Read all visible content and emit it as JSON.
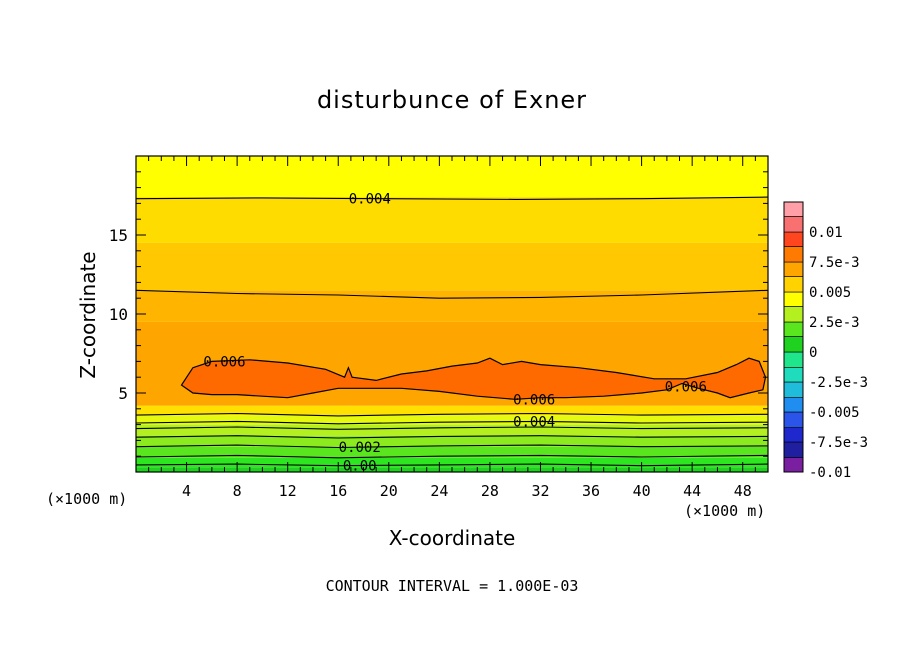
{
  "chart_data": {
    "type": "heatmap",
    "title": "disturbunce of Exner",
    "xlabel": "X-coordinate",
    "ylabel": "Z-coordinate",
    "x_unit_left": "(×1000 m)",
    "x_unit_right": "(×1000 m)",
    "footer": "CONTOUR INTERVAL = 1.000E-03",
    "xlim": [
      0,
      50
    ],
    "ylim": [
      0,
      20
    ],
    "x_ticks": [
      {
        "value": 4,
        "label": "4"
      },
      {
        "value": 8,
        "label": "8"
      },
      {
        "value": 12,
        "label": "12"
      },
      {
        "value": 16,
        "label": "16"
      },
      {
        "value": 20,
        "label": "20"
      },
      {
        "value": 24,
        "label": "24"
      },
      {
        "value": 28,
        "label": "28"
      },
      {
        "value": 32,
        "label": "32"
      },
      {
        "value": 36,
        "label": "36"
      },
      {
        "value": 40,
        "label": "40"
      },
      {
        "value": 44,
        "label": "44"
      },
      {
        "value": 48,
        "label": "48"
      }
    ],
    "y_ticks": [
      {
        "value": 5,
        "label": "5"
      },
      {
        "value": 10,
        "label": "10"
      },
      {
        "value": 15,
        "label": "15"
      }
    ],
    "contour_interval": 0.001,
    "colorbar": {
      "min": -0.01,
      "max": 0.01,
      "levels": [
        {
          "lo": -0.01,
          "hi": -0.0088,
          "color": "#7a1fa0"
        },
        {
          "lo": -0.0088,
          "hi": -0.0075,
          "color": "#1f1fa0"
        },
        {
          "lo": -0.0075,
          "hi": -0.0063,
          "color": "#1f28cc"
        },
        {
          "lo": -0.0063,
          "hi": -0.005,
          "color": "#2a55e8"
        },
        {
          "lo": -0.005,
          "hi": -0.0038,
          "color": "#1f8ef0"
        },
        {
          "lo": -0.0038,
          "hi": -0.0025,
          "color": "#1fbcdc"
        },
        {
          "lo": -0.0025,
          "hi": -0.0013,
          "color": "#1fdcbc"
        },
        {
          "lo": -0.0013,
          "hi": 0.0,
          "color": "#1fe68a"
        },
        {
          "lo": 0.0,
          "hi": 0.0013,
          "color": "#1fd21f"
        },
        {
          "lo": 0.0013,
          "hi": 0.0025,
          "color": "#5ae61f"
        },
        {
          "lo": 0.0025,
          "hi": 0.0038,
          "color": "#b4f01f"
        },
        {
          "lo": 0.0038,
          "hi": 0.005,
          "color": "#ffff00"
        },
        {
          "lo": 0.005,
          "hi": 0.0063,
          "color": "#ffd200"
        },
        {
          "lo": 0.0063,
          "hi": 0.0075,
          "color": "#ffa500"
        },
        {
          "lo": 0.0075,
          "hi": 0.0088,
          "color": "#ff7a00"
        },
        {
          "lo": 0.0088,
          "hi": 0.01,
          "color": "#ff461f"
        },
        {
          "lo": 0.01,
          "hi": 0.0113,
          "color": "#f87070"
        },
        {
          "lo": 0.0113,
          "hi": 0.0125,
          "color": "#ffa0a8"
        }
      ],
      "tick_labels": [
        {
          "value": 0.01,
          "label": "0.01"
        },
        {
          "value": 0.0075,
          "label": "7.5e-3"
        },
        {
          "value": 0.005,
          "label": "0.005"
        },
        {
          "value": 0.0025,
          "label": "2.5e-3"
        },
        {
          "value": 0.0,
          "label": "0"
        },
        {
          "value": -0.0025,
          "label": "-2.5e-3"
        },
        {
          "value": -0.005,
          "label": "-0.005"
        },
        {
          "value": -0.0075,
          "label": "-7.5e-3"
        },
        {
          "value": -0.01,
          "label": "-0.01"
        }
      ]
    },
    "filled_bands": [
      {
        "z_bottom": 0.0,
        "z_top": 0.3,
        "color": "#1fd21f"
      },
      {
        "z_bottom": 0.3,
        "z_top": 0.9,
        "color": "#2ee61f"
      },
      {
        "z_bottom": 0.9,
        "z_top": 1.6,
        "color": "#5ae61f"
      },
      {
        "z_bottom": 1.6,
        "z_top": 2.3,
        "color": "#8ceb1f"
      },
      {
        "z_bottom": 2.3,
        "z_top": 3.0,
        "color": "#b4f01f"
      },
      {
        "z_bottom": 3.0,
        "z_top": 3.6,
        "color": "#e6fa10"
      },
      {
        "z_bottom": 3.6,
        "z_top": 4.2,
        "color": "#ffe000"
      },
      {
        "z_bottom": 4.2,
        "z_top": 9.5,
        "color": "#ffa500"
      },
      {
        "z_bottom": 9.5,
        "z_top": 11.5,
        "color": "#ffb400"
      },
      {
        "z_bottom": 11.5,
        "z_top": 14.5,
        "color": "#ffc800"
      },
      {
        "z_bottom": 14.5,
        "z_top": 17.4,
        "color": "#ffdc00"
      },
      {
        "z_bottom": 17.4,
        "z_top": 20.0,
        "color": "#ffff00"
      }
    ],
    "contours": [
      {
        "level": 0.0,
        "label": "0.00",
        "label_x": 17.7,
        "points": [
          [
            0,
            0.45
          ],
          [
            8,
            0.5
          ],
          [
            16,
            0.4
          ],
          [
            24,
            0.45
          ],
          [
            32,
            0.5
          ],
          [
            40,
            0.4
          ],
          [
            50,
            0.5
          ]
        ]
      },
      {
        "level": 0.001,
        "label": "",
        "label_x": null,
        "points": [
          [
            0,
            0.95
          ],
          [
            8,
            1.05
          ],
          [
            16,
            0.9
          ],
          [
            24,
            1.0
          ],
          [
            32,
            1.05
          ],
          [
            40,
            0.95
          ],
          [
            50,
            1.05
          ]
        ]
      },
      {
        "level": 0.002,
        "label": "0.002",
        "label_x": 17.7,
        "points": [
          [
            0,
            1.6
          ],
          [
            8,
            1.7
          ],
          [
            16,
            1.55
          ],
          [
            24,
            1.65
          ],
          [
            32,
            1.7
          ],
          [
            40,
            1.6
          ],
          [
            50,
            1.65
          ]
        ]
      },
      {
        "level": 0.0025,
        "label": "",
        "label_x": null,
        "points": [
          [
            0,
            2.2
          ],
          [
            8,
            2.3
          ],
          [
            16,
            2.15
          ],
          [
            24,
            2.25
          ],
          [
            32,
            2.3
          ],
          [
            40,
            2.2
          ],
          [
            50,
            2.25
          ]
        ]
      },
      {
        "level": 0.003,
        "label": "",
        "label_x": null,
        "points": [
          [
            0,
            2.75
          ],
          [
            8,
            2.85
          ],
          [
            16,
            2.7
          ],
          [
            24,
            2.8
          ],
          [
            32,
            2.85
          ],
          [
            40,
            2.75
          ],
          [
            50,
            2.8
          ]
        ]
      },
      {
        "level": 0.004,
        "label": "0.004",
        "label_x": 31.5,
        "points": [
          [
            0,
            3.1
          ],
          [
            8,
            3.2
          ],
          [
            16,
            3.05
          ],
          [
            24,
            3.15
          ],
          [
            32,
            3.2
          ],
          [
            40,
            3.1
          ],
          [
            50,
            3.15
          ]
        ]
      },
      {
        "level": 0.0045,
        "label": "",
        "label_x": null,
        "points": [
          [
            0,
            3.6
          ],
          [
            8,
            3.7
          ],
          [
            16,
            3.55
          ],
          [
            24,
            3.65
          ],
          [
            32,
            3.7
          ],
          [
            40,
            3.6
          ],
          [
            50,
            3.65
          ]
        ]
      },
      {
        "level": 0.004,
        "label": "0.004",
        "label_x": 18.5,
        "points": [
          [
            0,
            17.3
          ],
          [
            10,
            17.35
          ],
          [
            20,
            17.3
          ],
          [
            30,
            17.25
          ],
          [
            40,
            17.3
          ],
          [
            50,
            17.4
          ]
        ]
      },
      {
        "level": 0.005,
        "label": "",
        "label_x": null,
        "points": [
          [
            0,
            11.5
          ],
          [
            8,
            11.3
          ],
          [
            16,
            11.2
          ],
          [
            24,
            11.0
          ],
          [
            32,
            11.05
          ],
          [
            40,
            11.2
          ],
          [
            50,
            11.5
          ]
        ]
      }
    ],
    "closed_contours": [
      {
        "level": 0.006,
        "labels": [
          {
            "label": "0.006",
            "x": 7.0,
            "z": 7.0
          },
          {
            "label": "0.006",
            "x": 31.5,
            "z": 4.6
          },
          {
            "label": "0.006",
            "x": 43.5,
            "z": 5.4
          }
        ],
        "points": [
          [
            3.6,
            5.5
          ],
          [
            4.5,
            6.6
          ],
          [
            6,
            7.0
          ],
          [
            9,
            7.1
          ],
          [
            12,
            6.9
          ],
          [
            15,
            6.5
          ],
          [
            16.5,
            6.0
          ],
          [
            16.8,
            6.6
          ],
          [
            17.1,
            6.0
          ],
          [
            19,
            5.8
          ],
          [
            21,
            6.2
          ],
          [
            23,
            6.4
          ],
          [
            25,
            6.7
          ],
          [
            27,
            6.9
          ],
          [
            28,
            7.2
          ],
          [
            29,
            6.8
          ],
          [
            30.5,
            7.0
          ],
          [
            32,
            6.8
          ],
          [
            35,
            6.6
          ],
          [
            38,
            6.3
          ],
          [
            41,
            5.9
          ],
          [
            43.5,
            5.9
          ],
          [
            46,
            6.3
          ],
          [
            47.5,
            6.8
          ],
          [
            48.5,
            7.2
          ],
          [
            49.3,
            7.0
          ],
          [
            49.8,
            6.0
          ],
          [
            49.6,
            5.2
          ],
          [
            48.5,
            5.0
          ],
          [
            47,
            4.7
          ],
          [
            46,
            5.0
          ],
          [
            44.5,
            5.3
          ],
          [
            43.2,
            5.6
          ],
          [
            42,
            5.2
          ],
          [
            40,
            5.0
          ],
          [
            37,
            4.8
          ],
          [
            34,
            4.7
          ],
          [
            32,
            4.7
          ],
          [
            30,
            4.6
          ],
          [
            27,
            4.8
          ],
          [
            24,
            5.1
          ],
          [
            21,
            5.3
          ],
          [
            18.5,
            5.3
          ],
          [
            16,
            5.3
          ],
          [
            14,
            5.0
          ],
          [
            12,
            4.7
          ],
          [
            10,
            4.8
          ],
          [
            8,
            4.9
          ],
          [
            6,
            4.9
          ],
          [
            4.5,
            5.0
          ],
          [
            3.6,
            5.5
          ]
        ]
      }
    ]
  }
}
